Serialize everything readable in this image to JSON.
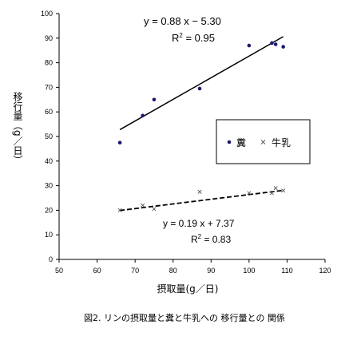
{
  "chart_data": {
    "type": "scatter",
    "xlabel": "摂取量(g／日)",
    "ylabel": "移行量（g／日）",
    "caption": "図2. リンの摂取量と糞と牛乳への 移行量との 関係",
    "xlim": [
      50,
      120
    ],
    "ylim": [
      0,
      100
    ],
    "x_ticks": [
      "50",
      "60",
      "70",
      "80",
      "90",
      "100",
      "110",
      "120"
    ],
    "y_ticks": [
      "0",
      "10",
      "20",
      "30",
      "40",
      "50",
      "60",
      "70",
      "80",
      "90",
      "100"
    ],
    "legend_position": "right",
    "series": [
      {
        "name": "糞",
        "marker": "dot",
        "color": "#1a1a6e",
        "points": [
          [
            66,
            47.5
          ],
          [
            72,
            58.5
          ],
          [
            75,
            65
          ],
          [
            87,
            69.5
          ],
          [
            100,
            87
          ],
          [
            106,
            88
          ],
          [
            107,
            87.5
          ],
          [
            109,
            86.5
          ]
        ],
        "trendline": {
          "x": [
            66,
            109
          ],
          "slope": 0.88,
          "intercept": -5.3,
          "style": "solid"
        },
        "equation": "y = 0.88 x − 5.30",
        "r2_label": "R",
        "r2_value": " = 0.95"
      },
      {
        "name": "牛乳",
        "marker": "x",
        "color": "#555555",
        "points": [
          [
            66,
            20
          ],
          [
            72,
            22
          ],
          [
            75,
            20.5
          ],
          [
            87,
            27.5
          ],
          [
            100,
            27
          ],
          [
            106,
            27
          ],
          [
            107,
            29
          ],
          [
            109,
            28
          ]
        ],
        "trendline": {
          "x": [
            66,
            109
          ],
          "slope": 0.19,
          "intercept": 7.37,
          "style": "dashed"
        },
        "equation": "y = 0.19 x + 7.37",
        "r2_label": "R",
        "r2_value": " = 0.83"
      }
    ]
  }
}
